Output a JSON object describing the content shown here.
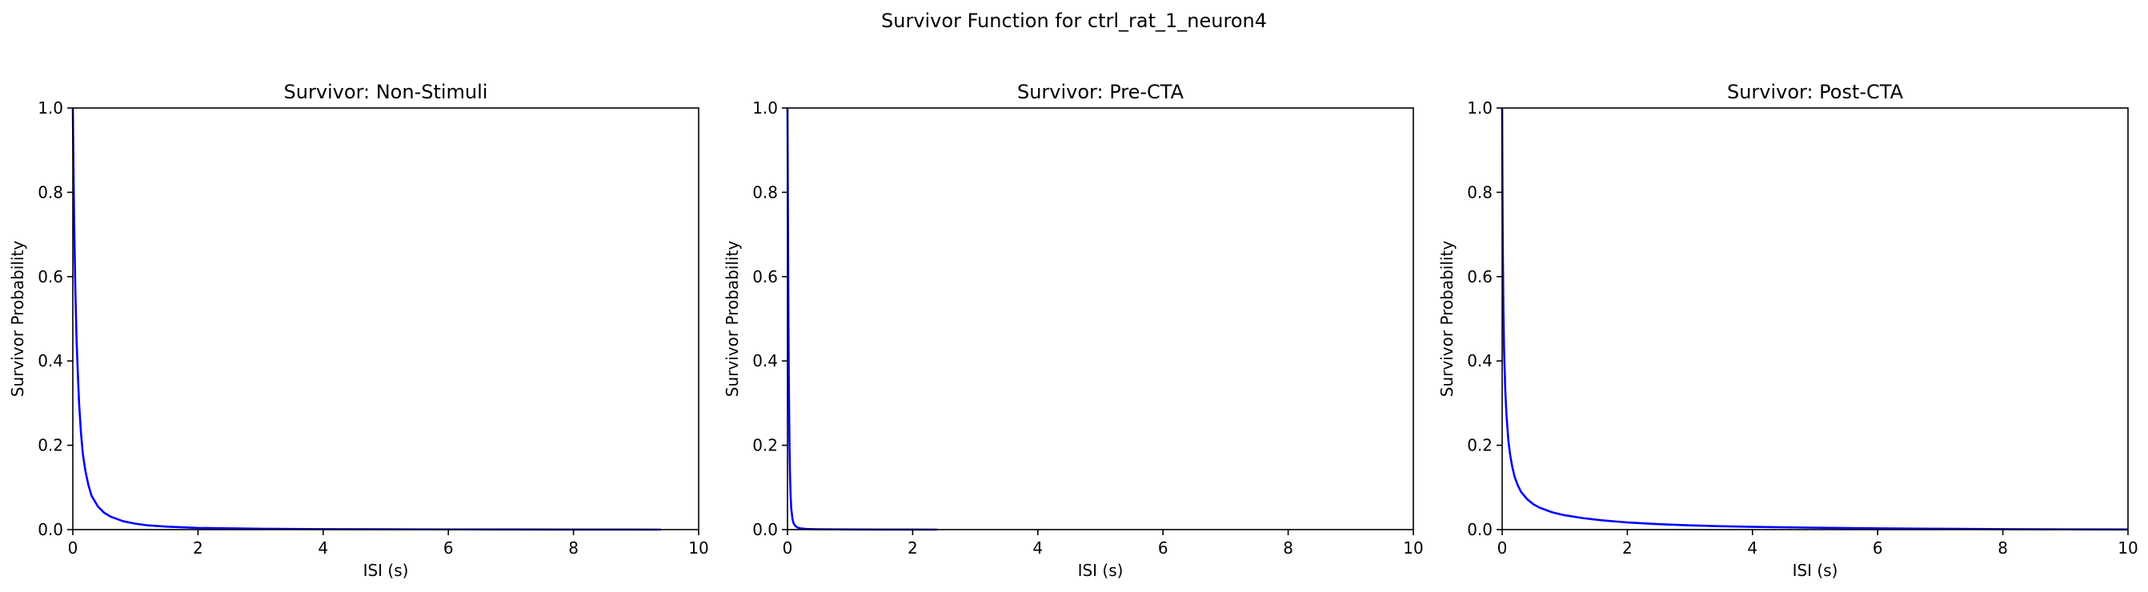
{
  "figure": {
    "suptitle": "Survivor Function for ctrl_rat_1_neuron4"
  },
  "chart_data": [
    {
      "type": "line",
      "title": "Survivor: Non-Stimuli",
      "xlabel": "ISI (s)",
      "ylabel": "Survivor Probability",
      "xlim": [
        0,
        10
      ],
      "ylim": [
        0,
        1
      ],
      "xticks": [
        0,
        2,
        4,
        6,
        8,
        10
      ],
      "yticks": [
        0.0,
        0.2,
        0.4,
        0.6,
        0.8,
        1.0
      ],
      "xticklabels": [
        "0",
        "2",
        "4",
        "6",
        "8",
        "10"
      ],
      "yticklabels": [
        "0.0",
        "0.2",
        "0.4",
        "0.6",
        "0.8",
        "1.0"
      ],
      "grid": false,
      "series": [
        {
          "color": "#0000ff",
          "x": [
            0,
            0.01,
            0.02,
            0.04,
            0.06,
            0.08,
            0.1,
            0.13,
            0.16,
            0.2,
            0.25,
            0.3,
            0.4,
            0.5,
            0.6,
            0.8,
            1.0,
            1.2,
            1.5,
            2.0,
            2.5,
            3.0,
            4.0,
            5.0,
            6.0,
            7.0,
            8.0,
            9.0,
            9.4
          ],
          "y": [
            1.0,
            0.86,
            0.74,
            0.57,
            0.45,
            0.37,
            0.3,
            0.23,
            0.18,
            0.14,
            0.105,
            0.08,
            0.055,
            0.04,
            0.031,
            0.02,
            0.014,
            0.01,
            0.007,
            0.004,
            0.003,
            0.002,
            0.0012,
            0.0008,
            0.0005,
            0.0003,
            0.0002,
            0.0001,
            0.0
          ]
        }
      ]
    },
    {
      "type": "line",
      "title": "Survivor: Pre-CTA",
      "xlabel": "ISI (s)",
      "ylabel": "Survivor Probability",
      "xlim": [
        0,
        10
      ],
      "ylim": [
        0,
        1
      ],
      "xticks": [
        0,
        2,
        4,
        6,
        8,
        10
      ],
      "yticks": [
        0.0,
        0.2,
        0.4,
        0.6,
        0.8,
        1.0
      ],
      "xticklabels": [
        "0",
        "2",
        "4",
        "6",
        "8",
        "10"
      ],
      "yticklabels": [
        "0.0",
        "0.2",
        "0.4",
        "0.6",
        "0.8",
        "1.0"
      ],
      "grid": false,
      "series": [
        {
          "color": "#0000ff",
          "x": [
            0,
            0.005,
            0.01,
            0.015,
            0.02,
            0.03,
            0.04,
            0.05,
            0.06,
            0.08,
            0.1,
            0.13,
            0.16,
            0.2,
            0.3,
            0.5,
            1.0,
            1.5,
            2.0,
            2.4
          ],
          "y": [
            1.0,
            0.82,
            0.65,
            0.5,
            0.38,
            0.22,
            0.13,
            0.08,
            0.05,
            0.025,
            0.014,
            0.008,
            0.005,
            0.003,
            0.0015,
            0.0008,
            0.0003,
            0.0001,
            5e-05,
            0.0
          ]
        }
      ]
    },
    {
      "type": "line",
      "title": "Survivor: Post-CTA",
      "xlabel": "ISI (s)",
      "ylabel": "Survivor Probability",
      "xlim": [
        0,
        10
      ],
      "ylim": [
        0,
        1
      ],
      "xticks": [
        0,
        2,
        4,
        6,
        8,
        10
      ],
      "yticks": [
        0.0,
        0.2,
        0.4,
        0.6,
        0.8,
        1.0
      ],
      "xticklabels": [
        "0",
        "2",
        "4",
        "6",
        "8",
        "10"
      ],
      "yticklabels": [
        "0.0",
        "0.2",
        "0.4",
        "0.6",
        "0.8",
        "1.0"
      ],
      "grid": false,
      "series": [
        {
          "color": "#0000ff",
          "x": [
            0,
            0.005,
            0.01,
            0.02,
            0.03,
            0.05,
            0.07,
            0.1,
            0.13,
            0.16,
            0.2,
            0.25,
            0.3,
            0.4,
            0.5,
            0.6,
            0.8,
            1.0,
            1.3,
            1.6,
            2.0,
            2.5,
            3.0,
            3.5,
            4.0,
            5.0,
            6.0,
            7.0,
            8.0,
            9.0,
            10.0
          ],
          "y": [
            1.0,
            0.8,
            0.67,
            0.52,
            0.43,
            0.33,
            0.27,
            0.21,
            0.175,
            0.15,
            0.125,
            0.105,
            0.09,
            0.072,
            0.06,
            0.052,
            0.041,
            0.034,
            0.027,
            0.022,
            0.017,
            0.013,
            0.01,
            0.008,
            0.0065,
            0.0045,
            0.003,
            0.002,
            0.0012,
            0.0006,
            0.0003
          ]
        }
      ]
    }
  ]
}
